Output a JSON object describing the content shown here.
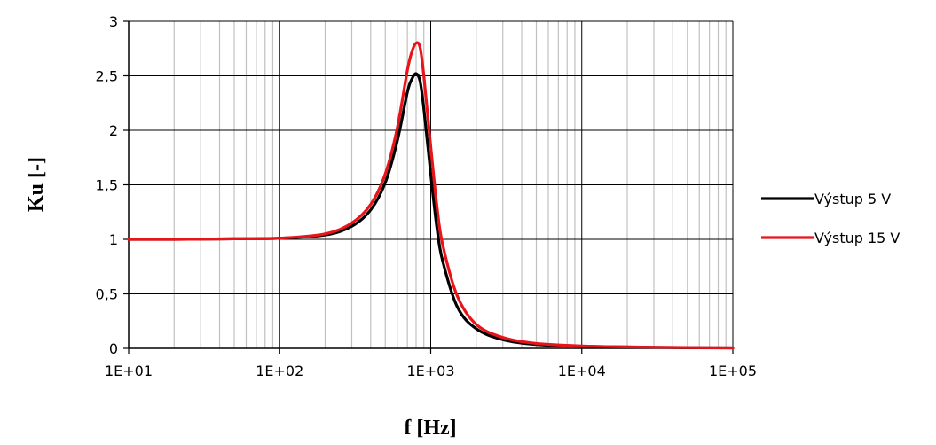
{
  "chart_data": {
    "type": "line",
    "title": "",
    "xlabel": "f [Hz]",
    "ylabel": "Ku [-]",
    "x_scale": "log",
    "xlim": [
      10,
      100000
    ],
    "ylim": [
      0,
      3
    ],
    "x_ticks": [
      10,
      100,
      1000,
      10000,
      100000
    ],
    "x_tick_labels": [
      "1E+01",
      "1E+02",
      "1E+03",
      "1E+04",
      "1E+05"
    ],
    "y_ticks": [
      0,
      0.5,
      1,
      1.5,
      2,
      2.5,
      3
    ],
    "y_tick_labels": [
      "0",
      "0,5",
      "1",
      "1,5",
      "2",
      "2,5",
      "3"
    ],
    "grid": {
      "x_major": true,
      "x_minor": true,
      "y_major": true
    },
    "legend": "right",
    "series": [
      {
        "name": "Výstup 5 V",
        "color": "#000000",
        "x": [
          10,
          20,
          50,
          100,
          200,
          300,
          400,
          500,
          600,
          700,
          750,
          800,
          850,
          900,
          1000,
          1100,
          1200,
          1500,
          2000,
          3000,
          5000,
          10000,
          20000,
          50000,
          100000
        ],
        "y": [
          1.0,
          1.0,
          1.005,
          1.01,
          1.04,
          1.12,
          1.27,
          1.52,
          1.9,
          2.35,
          2.47,
          2.52,
          2.45,
          2.2,
          1.6,
          1.1,
          0.8,
          0.38,
          0.18,
          0.08,
          0.035,
          0.02,
          0.012,
          0.006,
          0.004
        ]
      },
      {
        "name": "Výstup 15 V",
        "color": "#e8141a",
        "x": [
          10,
          20,
          50,
          100,
          200,
          300,
          400,
          500,
          600,
          700,
          750,
          800,
          850,
          900,
          1000,
          1100,
          1200,
          1500,
          2000,
          3000,
          5000,
          10000,
          20000,
          50000,
          100000
        ],
        "y": [
          1.0,
          1.0,
          1.005,
          1.01,
          1.05,
          1.15,
          1.32,
          1.6,
          2.02,
          2.55,
          2.72,
          2.8,
          2.76,
          2.5,
          1.85,
          1.3,
          0.95,
          0.48,
          0.22,
          0.1,
          0.045,
          0.022,
          0.013,
          0.007,
          0.004
        ]
      }
    ]
  }
}
